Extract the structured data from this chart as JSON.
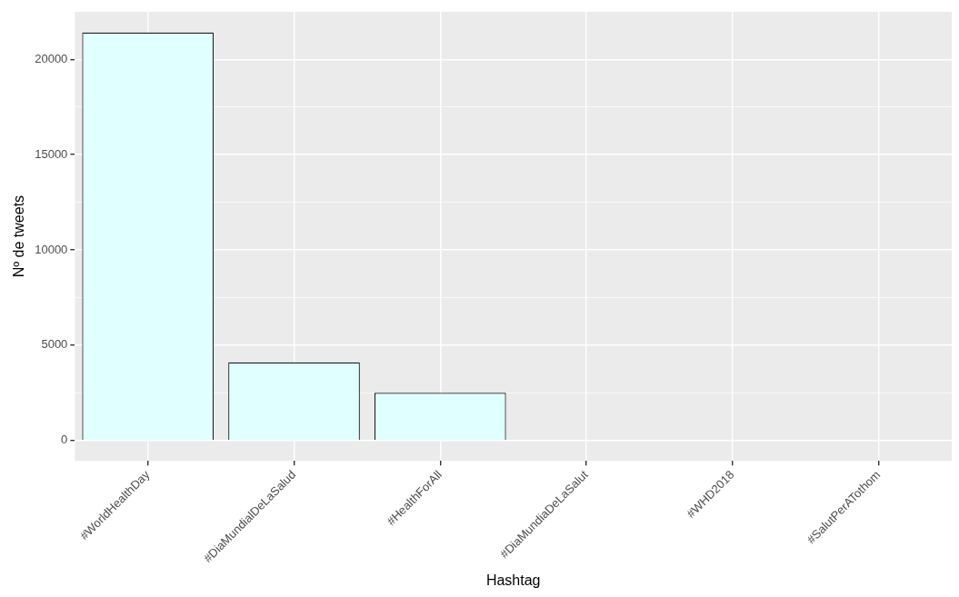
{
  "chart_data": {
    "type": "bar",
    "xlabel": "Hashtag",
    "ylabel": "Nº de tweets",
    "categories": [
      "#WorldHealthDay",
      "#DiaMundialDeLaSalud",
      "#HealthForAll",
      "#DiaMundiaDeLaSalut",
      "#WHD2018",
      "#SalutPerATothom"
    ],
    "values": [
      21400,
      4100,
      2500,
      0,
      0,
      0
    ],
    "color": "#e0ffff",
    "ylim": [
      -1070,
      22490
    ],
    "yticks": [
      0,
      {
        "value": 2500,
        "label": null
      },
      5000,
      {
        "value": 7500,
        "label": null
      },
      10000,
      {
        "value": 12500,
        "label": null
      },
      15000,
      {
        "value": 17500,
        "label": null
      },
      20000
    ],
    "grid": true,
    "legend": false
  }
}
